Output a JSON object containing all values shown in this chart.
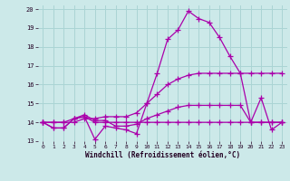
{
  "xlabel": "Windchill (Refroidissement éolien,°C)",
  "xlim": [
    -0.5,
    23.5
  ],
  "ylim": [
    13.0,
    20.2
  ],
  "xticks": [
    0,
    1,
    2,
    3,
    4,
    5,
    6,
    7,
    8,
    9,
    10,
    11,
    12,
    13,
    14,
    15,
    16,
    17,
    18,
    19,
    20,
    21,
    22,
    23
  ],
  "yticks": [
    13,
    14,
    15,
    16,
    17,
    18,
    19,
    20
  ],
  "bg_color": "#cce9e9",
  "grid_color": "#aad4d4",
  "line_color": "#aa00aa",
  "series": [
    [
      14.0,
      13.7,
      13.7,
      14.2,
      14.3,
      13.1,
      13.8,
      13.7,
      13.6,
      13.4,
      15.0,
      16.6,
      18.4,
      18.9,
      19.9,
      19.5,
      19.3,
      18.5,
      17.5,
      16.6,
      14.0,
      15.3,
      13.6,
      14.0
    ],
    [
      14.0,
      13.7,
      13.7,
      14.2,
      14.3,
      14.0,
      14.0,
      14.0,
      14.0,
      14.0,
      14.0,
      14.0,
      14.0,
      14.0,
      14.0,
      14.0,
      14.0,
      14.0,
      14.0,
      14.0,
      14.0,
      14.0,
      14.0,
      14.0
    ],
    [
      14.0,
      14.0,
      14.0,
      14.2,
      14.4,
      14.1,
      14.1,
      13.8,
      13.8,
      13.9,
      14.2,
      14.4,
      14.6,
      14.8,
      14.9,
      14.9,
      14.9,
      14.9,
      14.9,
      14.9,
      14.0,
      14.0,
      14.0,
      14.0
    ],
    [
      14.0,
      14.0,
      14.0,
      14.0,
      14.2,
      14.2,
      14.3,
      14.3,
      14.3,
      14.5,
      15.0,
      15.5,
      16.0,
      16.3,
      16.5,
      16.6,
      16.6,
      16.6,
      16.6,
      16.6,
      16.6,
      16.6,
      16.6,
      16.6
    ]
  ]
}
